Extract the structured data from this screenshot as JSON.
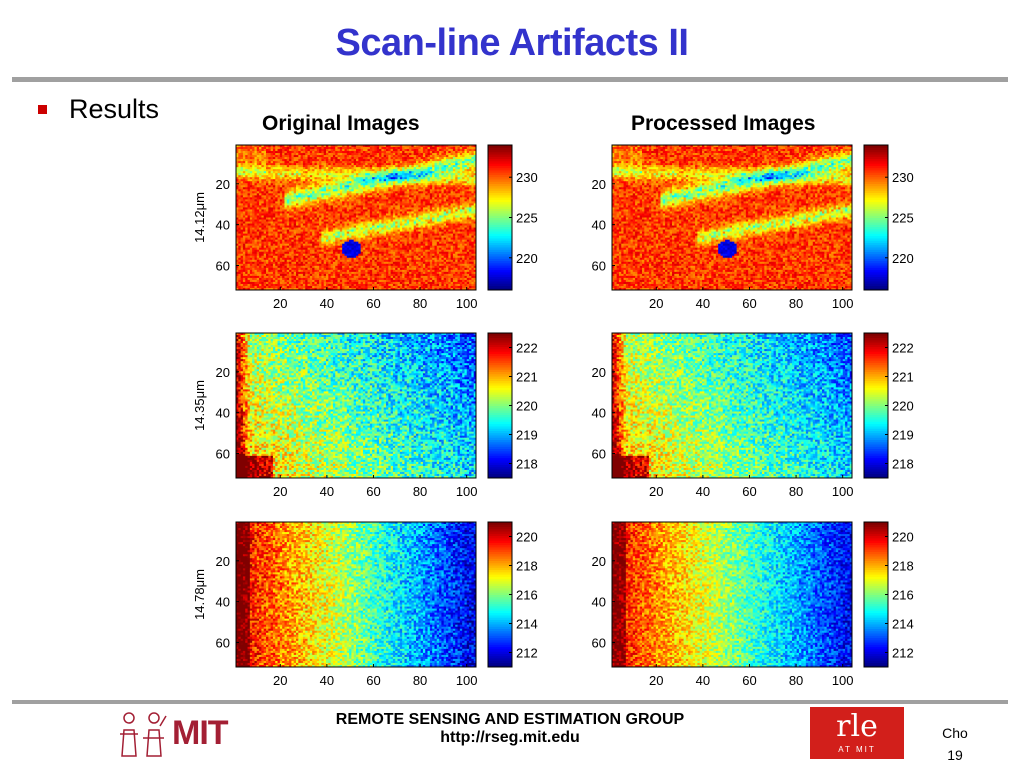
{
  "slide": {
    "title": "Scan-line Artifacts II",
    "bullet": "Results",
    "footer_group": "REMOTE SENSING AND ESTIMATION GROUP",
    "footer_url": "http://rseg.mit.edu",
    "mit_logo_text": "MIT",
    "rle_logo_text": "rle",
    "rle_logo_sub": "AT MIT",
    "author": "Cho",
    "page_number": "19"
  },
  "columns": {
    "original": "Original Images",
    "processed": "Processed Images"
  },
  "colors": {
    "title": "#3333cc",
    "bullet": "#cc0000",
    "rule": "#a0a0a0",
    "mit_red": "#a31f34",
    "rle_red": "#d21f1b"
  },
  "chart_data": [
    {
      "type": "heatmap",
      "panel": "original",
      "ylabel": "14.12μm",
      "x_ticks": [
        "20",
        "40",
        "60",
        "80",
        "100"
      ],
      "y_ticks": [
        "20",
        "40",
        "60"
      ],
      "colorbar_ticks": [
        "230",
        "225",
        "220"
      ],
      "xlim": [
        1,
        104
      ],
      "ylim": [
        1,
        72
      ],
      "clim": [
        216,
        234
      ]
    },
    {
      "type": "heatmap",
      "panel": "processed",
      "ylabel": "",
      "x_ticks": [
        "20",
        "40",
        "60",
        "80",
        "100"
      ],
      "y_ticks": [
        "20",
        "40",
        "60"
      ],
      "colorbar_ticks": [
        "230",
        "225",
        "220"
      ],
      "xlim": [
        1,
        104
      ],
      "ylim": [
        1,
        72
      ],
      "clim": [
        216,
        234
      ]
    },
    {
      "type": "heatmap",
      "panel": "original",
      "ylabel": "14.35μm",
      "x_ticks": [
        "20",
        "40",
        "60",
        "80",
        "100"
      ],
      "y_ticks": [
        "20",
        "40",
        "60"
      ],
      "colorbar_ticks": [
        "222",
        "221",
        "220",
        "219",
        "218"
      ],
      "xlim": [
        1,
        104
      ],
      "ylim": [
        1,
        72
      ],
      "clim": [
        217.5,
        222.5
      ]
    },
    {
      "type": "heatmap",
      "panel": "processed",
      "ylabel": "",
      "x_ticks": [
        "20",
        "40",
        "60",
        "80",
        "100"
      ],
      "y_ticks": [
        "20",
        "40",
        "60"
      ],
      "colorbar_ticks": [
        "222",
        "221",
        "220",
        "219",
        "218"
      ],
      "xlim": [
        1,
        104
      ],
      "ylim": [
        1,
        72
      ],
      "clim": [
        217.5,
        222.5
      ]
    },
    {
      "type": "heatmap",
      "panel": "original",
      "ylabel": "14.78μm",
      "x_ticks": [
        "20",
        "40",
        "60",
        "80",
        "100"
      ],
      "y_ticks": [
        "20",
        "40",
        "60"
      ],
      "colorbar_ticks": [
        "220",
        "218",
        "216",
        "214",
        "212"
      ],
      "xlim": [
        1,
        104
      ],
      "ylim": [
        1,
        72
      ],
      "clim": [
        211,
        221
      ]
    },
    {
      "type": "heatmap",
      "panel": "processed",
      "ylabel": "",
      "x_ticks": [
        "20",
        "40",
        "60",
        "80",
        "100"
      ],
      "y_ticks": [
        "20",
        "40",
        "60"
      ],
      "colorbar_ticks": [
        "220",
        "218",
        "216",
        "214",
        "212"
      ],
      "xlim": [
        1,
        104
      ],
      "ylim": [
        1,
        72
      ],
      "clim": [
        211,
        221
      ]
    }
  ]
}
